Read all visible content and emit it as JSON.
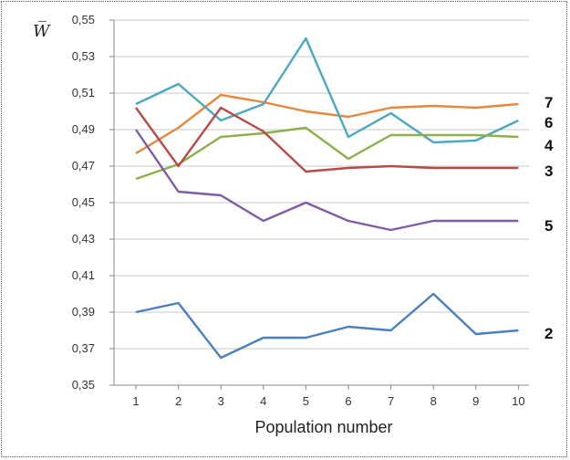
{
  "chart_data": {
    "type": "line",
    "x": [
      1,
      2,
      3,
      4,
      5,
      6,
      7,
      8,
      9,
      10
    ],
    "xlabel": "Population number",
    "ylabel": "W̅",
    "ylim": [
      0.35,
      0.55
    ],
    "yticks": [
      "0,35",
      "0,37",
      "0,39",
      "0,41",
      "0,43",
      "0,45",
      "0,47",
      "0,49",
      "0,51",
      "0,53",
      "0,55"
    ],
    "grid": "horizontal",
    "series": [
      {
        "name": "7",
        "color": "#e8873a",
        "values": [
          0.477,
          0.491,
          0.509,
          0.505,
          0.5,
          0.497,
          0.502,
          0.503,
          0.502,
          0.504
        ]
      },
      {
        "name": "6",
        "color": "#4aa8c2",
        "values": [
          0.504,
          0.515,
          0.495,
          0.504,
          0.54,
          0.486,
          0.499,
          0.483,
          0.484,
          0.495
        ]
      },
      {
        "name": "4",
        "color": "#8db04a",
        "values": [
          0.463,
          0.471,
          0.486,
          0.488,
          0.491,
          0.474,
          0.487,
          0.487,
          0.487,
          0.486
        ]
      },
      {
        "name": "3",
        "color": "#b84a47",
        "values": [
          0.502,
          0.47,
          0.502,
          0.489,
          0.467,
          0.469,
          0.47,
          0.469,
          0.469,
          0.469
        ]
      },
      {
        "name": "5",
        "color": "#7e5ba6",
        "values": [
          0.49,
          0.456,
          0.454,
          0.44,
          0.45,
          0.44,
          0.435,
          0.44,
          0.44,
          0.44
        ]
      },
      {
        "name": "2",
        "color": "#4a7fc1",
        "values": [
          0.39,
          0.395,
          0.365,
          0.376,
          0.376,
          0.382,
          0.38,
          0.4,
          0.378,
          0.38
        ]
      }
    ]
  }
}
